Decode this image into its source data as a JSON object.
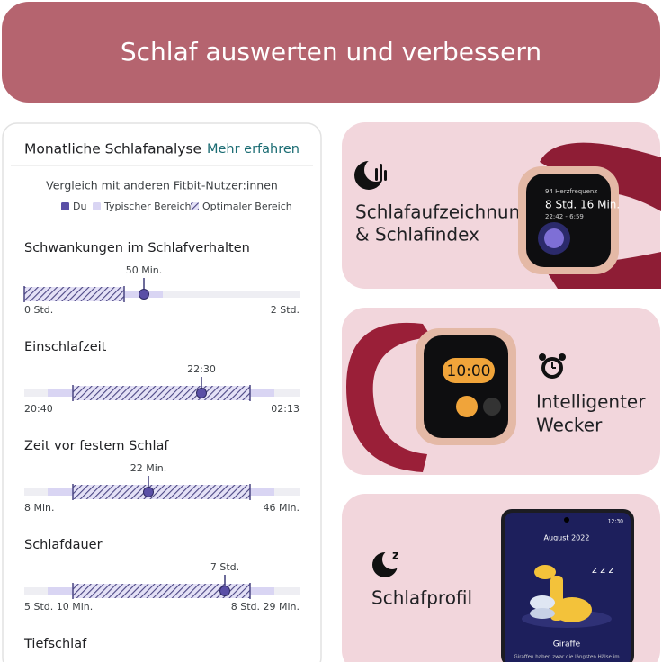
{
  "header": {
    "title": "Schlaf auswerten und verbessern"
  },
  "card": {
    "title": "Monatliche Schlafanalyse",
    "link": "Mehr erfahren",
    "subtitle": "Vergleich mit anderen Fitbit-Nutzer:innen",
    "legend": [
      "Du",
      "Typischer Bereich",
      "Optimaler Bereich"
    ],
    "sections": [
      {
        "title": "Schwankungen im Schlafverhalten",
        "value": "50 Min.",
        "min": "0 Std.",
        "max": "2 Std."
      },
      {
        "title": "Einschlafzeit",
        "value": "22:30",
        "min": "20:40",
        "max": "02:13"
      },
      {
        "title": "Zeit vor festem Schlaf",
        "value": "22 Min.",
        "min": "8 Min.",
        "max": "46 Min."
      },
      {
        "title": "Schlafdauer",
        "value": "7 Std.",
        "min": "5 Std. 10 Min.",
        "max": "8 Std. 29 Min."
      },
      {
        "title": "Tiefschlaf"
      }
    ]
  },
  "features": [
    {
      "lines": [
        "Schlafaufzeichnung",
        "& Schlafindex"
      ]
    },
    {
      "lines": [
        "Intelligenter",
        "Wecker"
      ]
    },
    {
      "lines": [
        "Schlafprofil"
      ]
    }
  ],
  "watch1": {
    "heart": "94 Herzfrequenz",
    "duration": "8 Std. 16 Min.",
    "time": "22:42 - 6:59"
  },
  "watch2": {
    "time": "10:00"
  },
  "phone": {
    "clock": "12:30",
    "month": "August 2022",
    "animal": "Giraffe",
    "caption": "Giraffen haben zwar die längsten Hälse im"
  }
}
